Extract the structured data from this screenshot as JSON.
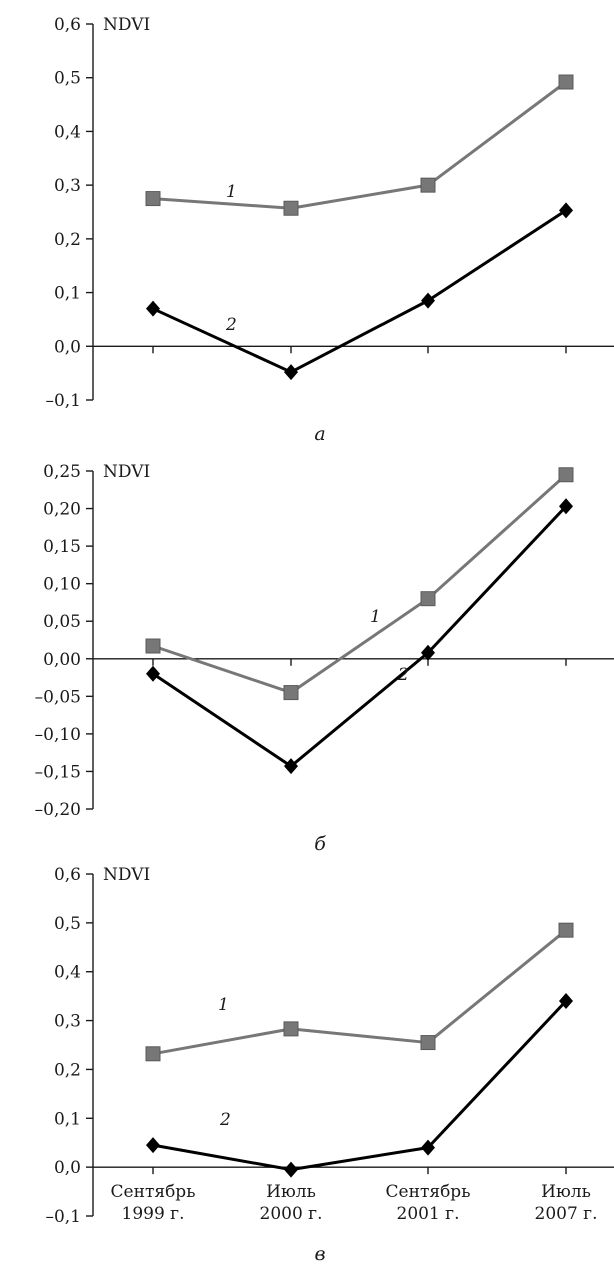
{
  "chart_data": [
    {
      "type": "line",
      "panel_label": "а",
      "ylabel": "NDVI",
      "ylim": [
        -0.1,
        0.6
      ],
      "yticks": [
        -0.1,
        0.0,
        0.1,
        0.2,
        0.3,
        0.4,
        0.5,
        0.6
      ],
      "ytick_labels": [
        "–0,1",
        "0,0",
        "0,1",
        "0,2",
        "0,3",
        "0,4",
        "0,5",
        "0,6"
      ],
      "categories": [
        "Сентябрь 1999 г.",
        "Июль 2000 г.",
        "Сентябрь 2001 г.",
        "Июль 2007 г."
      ],
      "show_x_labels": false,
      "series": [
        {
          "name": "1",
          "marker": "square",
          "color": "#777777",
          "values": [
            0.275,
            0.257,
            0.3,
            0.492
          ]
        },
        {
          "name": "2",
          "marker": "diamond",
          "color": "#000000",
          "values": [
            0.07,
            -0.048,
            0.085,
            0.253
          ]
        }
      ]
    },
    {
      "type": "line",
      "panel_label": "б",
      "ylabel": "NDVI",
      "ylim": [
        -0.2,
        0.25
      ],
      "yticks": [
        -0.2,
        -0.15,
        -0.1,
        -0.05,
        0.0,
        0.05,
        0.1,
        0.15,
        0.2,
        0.25
      ],
      "ytick_labels": [
        "–0,20",
        "–0,15",
        "–0,10",
        "–0,05",
        "0,00",
        "0,05",
        "0,10",
        "0,15",
        "0,20",
        "0,25"
      ],
      "categories": [
        "Сентябрь 1999 г.",
        "Июль 2000 г.",
        "Сентябрь 2001 г.",
        "Июль 2007 г."
      ],
      "show_x_labels": false,
      "series": [
        {
          "name": "1",
          "marker": "square",
          "color": "#777777",
          "values": [
            0.017,
            -0.045,
            0.08,
            0.245
          ]
        },
        {
          "name": "2",
          "marker": "diamond",
          "color": "#000000",
          "values": [
            -0.02,
            -0.143,
            0.008,
            0.203
          ]
        }
      ]
    },
    {
      "type": "line",
      "panel_label": "в",
      "ylabel": "NDVI",
      "ylim": [
        -0.1,
        0.6
      ],
      "yticks": [
        -0.1,
        0.0,
        0.1,
        0.2,
        0.3,
        0.4,
        0.5,
        0.6
      ],
      "ytick_labels": [
        "–0,1",
        "0,0",
        "0,1",
        "0,2",
        "0,3",
        "0,4",
        "0,5",
        "0,6"
      ],
      "categories": [
        "Сентябрь 1999 г.",
        "Июль 2000 г.",
        "Сентябрь 2001 г.",
        "Июль 2007 г."
      ],
      "category_lines": [
        [
          "Сентябрь",
          "1999 г."
        ],
        [
          "Июль",
          "2000 г."
        ],
        [
          "Сентябрь",
          "2001 г."
        ],
        [
          "Июль",
          "2007 г."
        ]
      ],
      "show_x_labels": true,
      "series": [
        {
          "name": "1",
          "marker": "square",
          "color": "#777777",
          "values": [
            0.232,
            0.283,
            0.255,
            0.485
          ]
        },
        {
          "name": "2",
          "marker": "diamond",
          "color": "#000000",
          "values": [
            0.045,
            -0.005,
            0.04,
            0.34
          ]
        }
      ]
    }
  ]
}
